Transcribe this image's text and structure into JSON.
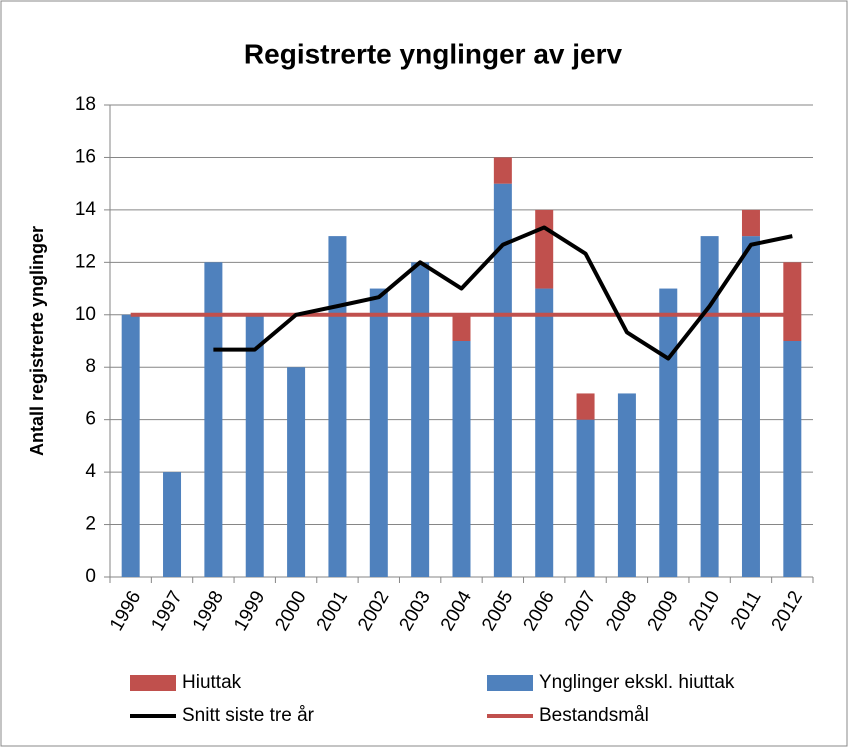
{
  "chart_data": {
    "type": "bar",
    "title": "Registrerte ynglinger av jerv",
    "y_label": "Antall registrerte ynglinger",
    "categories": [
      "1996",
      "1997",
      "1998",
      "1999",
      "2000",
      "2001",
      "2002",
      "2003",
      "2004",
      "2005",
      "2006",
      "2007",
      "2008",
      "2009",
      "2010",
      "2011",
      "2012"
    ],
    "series": [
      {
        "name": "Hiuttak",
        "color": "#c0504d",
        "type": "bar",
        "values": [
          0,
          0,
          0,
          0,
          0,
          0,
          0,
          0,
          1,
          1,
          3,
          1,
          0,
          0,
          0,
          1,
          3
        ]
      },
      {
        "name": "Ynglinger ekskl. hiuttak",
        "color": "#4f81bd",
        "type": "bar",
        "values": [
          10,
          4,
          12,
          10,
          8,
          13,
          11,
          12,
          9,
          15,
          11,
          6,
          7,
          11,
          13,
          13,
          9
        ]
      },
      {
        "name": "Snitt siste tre år",
        "color": "#000000",
        "type": "line",
        "values": [
          null,
          null,
          8.67,
          8.67,
          10,
          10.33,
          10.67,
          12,
          11,
          12.67,
          13.33,
          12.33,
          9.33,
          8.33,
          10.33,
          12.67,
          13
        ]
      },
      {
        "name": "Bestandsmål",
        "color": "#c0504d",
        "type": "line",
        "values": [
          10,
          10,
          10,
          10,
          10,
          10,
          10,
          10,
          10,
          10,
          10,
          10,
          10,
          10,
          10,
          10,
          10
        ]
      }
    ],
    "stacked": true,
    "ylim": [
      0,
      18
    ],
    "yticks": [
      0,
      2,
      4,
      6,
      8,
      10,
      12,
      14,
      16,
      18
    ],
    "grid": true
  }
}
